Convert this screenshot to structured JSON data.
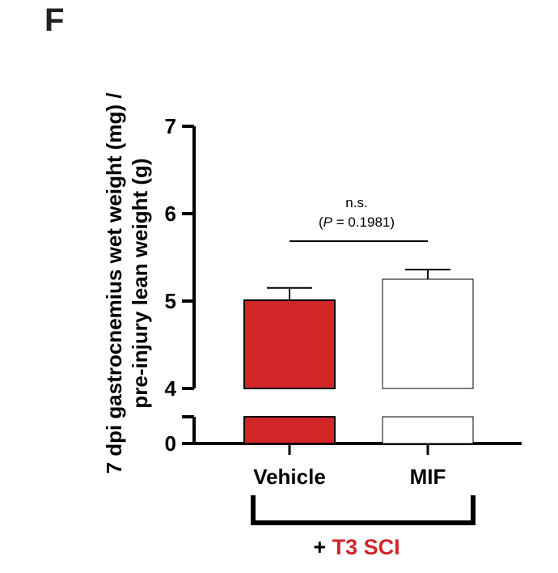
{
  "panel_label": "F",
  "chart_data": {
    "type": "bar",
    "categories": [
      "Vehicle",
      "MIF"
    ],
    "values": [
      5.01,
      5.25
    ],
    "errors": [
      0.14,
      0.11
    ],
    "bar_colors": [
      "#d02628",
      "#ffffff"
    ],
    "ylabel_line1": "7 dpi gastrocnemius wet weight (mg) /",
    "ylabel_line2": "pre-injury lean weight (g)",
    "ylim_broken": {
      "lower": [
        0,
        0.6
      ],
      "upper": [
        4,
        7
      ]
    },
    "yticks_upper": [
      "4",
      "5",
      "6",
      "7"
    ],
    "yticks_lower": [
      "0"
    ],
    "grid": false,
    "annotation": {
      "text_line1": "n.s.",
      "p_label": "P",
      "p_value": "= 0.1981"
    },
    "group_label": {
      "prefix": "+ ",
      "text": "T3 SCI",
      "color": "#d02628"
    }
  }
}
